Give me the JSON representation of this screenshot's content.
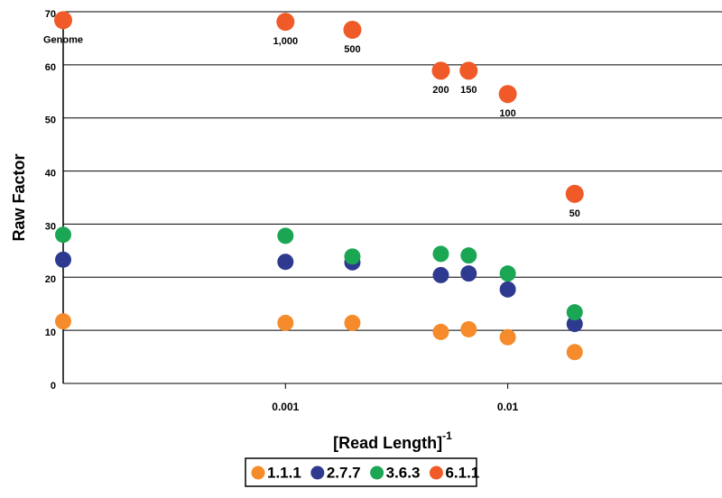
{
  "chart_data": {
    "type": "scatter",
    "x_label": "[Read Length]",
    "x_label_superscript": "-1",
    "y_label": "Raw Factor",
    "xscale": "log",
    "xlim": [
      0.0001,
      0.092
    ],
    "xticks": [
      0.001,
      0.01
    ],
    "ylim": [
      0,
      70
    ],
    "yticks": [
      0,
      10,
      20,
      30,
      40,
      50,
      60,
      70
    ],
    "grid": true,
    "x": [
      0.0001,
      0.001,
      0.002,
      0.005,
      0.00667,
      0.01,
      0.02
    ],
    "series": [
      {
        "name": "1.1.1",
        "color": "#f58b2a",
        "values": [
          11.7,
          11.4,
          11.4,
          9.7,
          10.2,
          8.7,
          5.9
        ]
      },
      {
        "name": "2.7.7",
        "color": "#2e3a8f",
        "values": [
          23.3,
          22.9,
          22.8,
          20.4,
          20.7,
          17.7,
          11.2
        ]
      },
      {
        "name": "3.6.3",
        "color": "#1aa653",
        "values": [
          28.0,
          27.8,
          23.9,
          24.4,
          24.1,
          20.7,
          13.4
        ]
      },
      {
        "name": "6.1.1",
        "color": "#f05a28",
        "values": [
          68.4,
          68.1,
          66.6,
          58.9,
          58.9,
          54.5,
          35.7
        ],
        "labels": [
          "Genome",
          "1,000",
          "500",
          "200",
          "150",
          "100",
          "50"
        ]
      }
    ]
  }
}
